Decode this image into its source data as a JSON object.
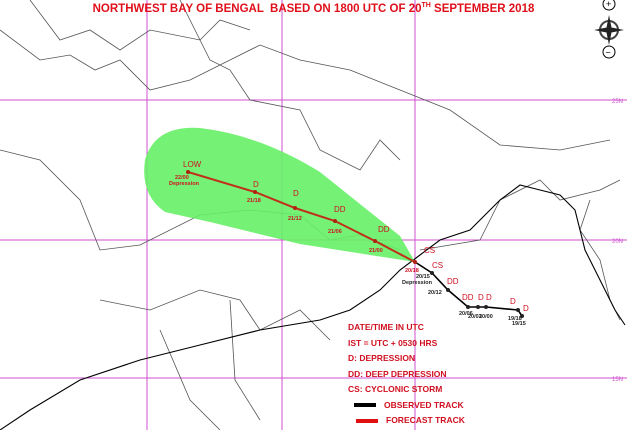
{
  "title": {
    "pre": "NORTHWEST BAY OF BENGAL  BASED ON 1800 UTC OF 20",
    "sup": "TH",
    "post": " SEPTEMBER 2018"
  },
  "latitude_labels": [
    "25N",
    "20N",
    "15N"
  ],
  "colors": {
    "cone": "#66f066",
    "forecast_track": "#c0301a",
    "observed_track": "#000000",
    "grid": "#d050d0",
    "text": "#e0101a"
  },
  "forecast_points": [
    {
      "time": "20/18",
      "category": "CS",
      "extra": "Depression"
    },
    {
      "time": "21/00",
      "category": "DD"
    },
    {
      "time": "21/06",
      "category": "DD"
    },
    {
      "time": "21/12",
      "category": "D"
    },
    {
      "time": "21/18",
      "category": "D"
    },
    {
      "time": "22/00",
      "category": "LOW",
      "extra": "Depression"
    }
  ],
  "observed_points": [
    {
      "time": "20/15",
      "category": "CS"
    },
    {
      "time": "20/12",
      "category": "DD"
    },
    {
      "time": "20/06",
      "category": "DD"
    },
    {
      "time": "20/03",
      "category": "D"
    },
    {
      "time": "20/00",
      "category": "D"
    },
    {
      "time": "19/18",
      "category": "D"
    },
    {
      "time": "19/15",
      "category": "D"
    }
  ],
  "legend": {
    "items": [
      "DATE/TIME IN UTC",
      "IST = UTC + 0530 HRS",
      "D: DEPRESSION",
      "DD: DEEP DEPRESSION",
      "CS: CYCLONIC STORM"
    ],
    "observed": "OBSERVED TRACK",
    "forecast": "FORECAST TRACK"
  },
  "controls": {
    "zoom_in": "+",
    "zoom_out": "−",
    "compass": "compass-rose-icon"
  }
}
